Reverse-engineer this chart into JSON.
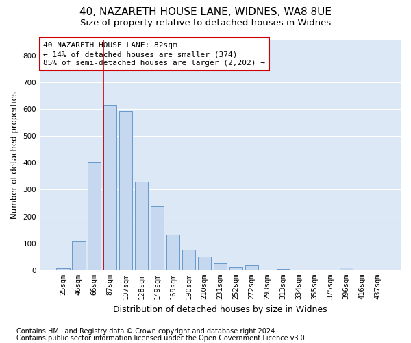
{
  "title1": "40, NAZARETH HOUSE LANE, WIDNES, WA8 8UE",
  "title2": "Size of property relative to detached houses in Widnes",
  "xlabel": "Distribution of detached houses by size in Widnes",
  "ylabel": "Number of detached properties",
  "categories": [
    "25sqm",
    "46sqm",
    "66sqm",
    "87sqm",
    "107sqm",
    "128sqm",
    "149sqm",
    "169sqm",
    "190sqm",
    "210sqm",
    "231sqm",
    "252sqm",
    "272sqm",
    "293sqm",
    "313sqm",
    "334sqm",
    "355sqm",
    "375sqm",
    "396sqm",
    "416sqm",
    "437sqm"
  ],
  "values": [
    8,
    107,
    403,
    615,
    592,
    330,
    237,
    133,
    77,
    51,
    25,
    13,
    17,
    3,
    5,
    0,
    0,
    0,
    10,
    0,
    0
  ],
  "bar_color": "#c5d8f0",
  "bar_edge_color": "#6699cc",
  "annotation_text1": "40 NAZARETH HOUSE LANE: 82sqm",
  "annotation_text2": "← 14% of detached houses are smaller (374)",
  "annotation_text3": "85% of semi-detached houses are larger (2,202) →",
  "vline_color": "#cc0000",
  "annotation_box_facecolor": "#ffffff",
  "annotation_box_edgecolor": "#cc0000",
  "yticks": [
    0,
    100,
    200,
    300,
    400,
    500,
    600,
    700,
    800
  ],
  "ylim": [
    0,
    860
  ],
  "footnote1": "Contains HM Land Registry data © Crown copyright and database right 2024.",
  "footnote2": "Contains public sector information licensed under the Open Government Licence v3.0.",
  "background_color": "#ffffff",
  "plot_bg_color": "#dce8f5",
  "grid_color": "#ffffff",
  "title1_fontsize": 11,
  "title2_fontsize": 9.5,
  "xlabel_fontsize": 9,
  "ylabel_fontsize": 8.5,
  "tick_fontsize": 7.5,
  "footnote_fontsize": 7,
  "annotation_fontsize": 8,
  "vline_x": 2.575
}
